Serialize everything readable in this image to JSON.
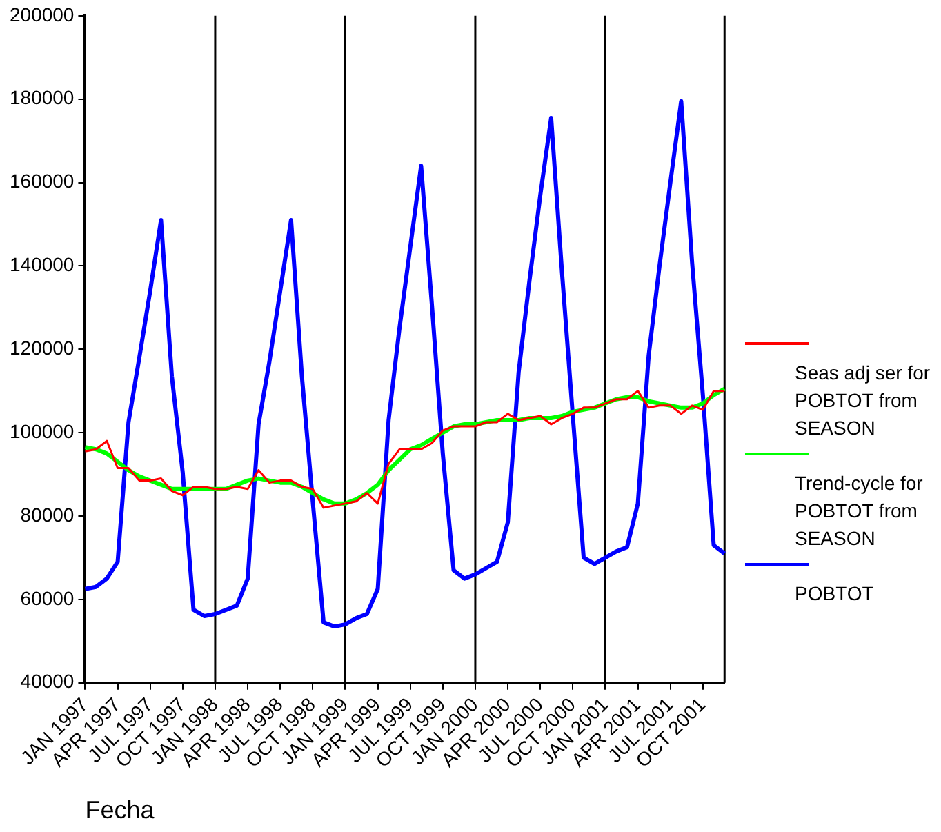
{
  "chart_data": {
    "type": "line",
    "xlabel": "Fecha",
    "categories": [
      "JAN 1997",
      null,
      null,
      "APR 1997",
      null,
      null,
      "JUL 1997",
      null,
      null,
      "OCT 1997",
      null,
      null,
      "JAN 1998",
      null,
      null,
      "APR 1998",
      null,
      null,
      "JUL 1998",
      null,
      null,
      "OCT 1998",
      null,
      null,
      "JAN 1999",
      null,
      null,
      "APR 1999",
      null,
      null,
      "JUL 1999",
      null,
      null,
      "OCT 1999",
      null,
      null,
      "JAN 2000",
      null,
      null,
      "APR 2000",
      null,
      null,
      "JUL 2000",
      null,
      null,
      "OCT 2000",
      null,
      null,
      "JAN 2001",
      null,
      null,
      "APR 2001",
      null,
      null,
      "JUL 2001",
      null,
      null,
      "OCT 2001",
      null,
      null
    ],
    "series": [
      {
        "name": "Seas adj ser for POBTOT from SEASON",
        "color": "#ff0000",
        "values": [
          95500,
          96000,
          98000,
          91500,
          91500,
          88500,
          88500,
          89000,
          86000,
          85000,
          87000,
          87000,
          86500,
          86500,
          87000,
          86500,
          91000,
          88000,
          88500,
          88500,
          87000,
          86500,
          82000,
          82500,
          83000,
          83500,
          85500,
          83000,
          92500,
          96000,
          96000,
          96000,
          97500,
          100500,
          101500,
          101500,
          101500,
          102500,
          102500,
          104500,
          103000,
          103500,
          104000,
          102000,
          103500,
          104500,
          106000,
          106000,
          107000,
          108000,
          108000,
          110000,
          106000,
          106500,
          106500,
          104500,
          106500,
          105500,
          110000,
          110000
        ]
      },
      {
        "name": "Trend-cycle for POBTOT from SEASON",
        "color": "#00ff00",
        "values": [
          96500,
          96000,
          95000,
          93000,
          91000,
          89500,
          88500,
          87500,
          86500,
          86500,
          86500,
          86500,
          86500,
          86500,
          87500,
          88500,
          89000,
          88500,
          88000,
          88000,
          87000,
          85500,
          84000,
          83000,
          83000,
          84000,
          85500,
          87500,
          91000,
          93500,
          96000,
          97000,
          98500,
          100000,
          101500,
          102000,
          102000,
          102500,
          103000,
          103000,
          103000,
          103500,
          103500,
          103500,
          104000,
          105000,
          105500,
          106000,
          107000,
          108000,
          108500,
          108500,
          107500,
          107000,
          106500,
          106000,
          106000,
          107000,
          109000,
          110500
        ]
      },
      {
        "name": "POBTOT",
        "color": "#0000ff",
        "values": [
          62500,
          63000,
          65000,
          69000,
          102500,
          118000,
          134000,
          151000,
          113500,
          90500,
          57500,
          56000,
          56500,
          57500,
          58500,
          65000,
          102000,
          117000,
          134000,
          151000,
          113500,
          83500,
          54500,
          53500,
          54000,
          55500,
          56500,
          62500,
          103000,
          125000,
          144500,
          164000,
          130500,
          95000,
          67000,
          65000,
          66000,
          67500,
          69000,
          78500,
          114500,
          136500,
          157000,
          175500,
          138500,
          104000,
          70000,
          68500,
          70000,
          71500,
          72500,
          83000,
          118500,
          140000,
          160000,
          179500,
          141000,
          109000,
          73000,
          71000
        ]
      }
    ],
    "ylim": [
      40000,
      200000
    ],
    "yticks": [
      40000,
      60000,
      80000,
      100000,
      120000,
      140000,
      160000,
      180000,
      200000
    ],
    "grid": false,
    "legend": "right",
    "marker": "none",
    "line_style": "solid",
    "ref_lines": [
      {
        "axis": "x",
        "value": "JAN 1998",
        "color": "#000000"
      },
      {
        "axis": "x",
        "value": "JAN 1999",
        "color": "#000000"
      },
      {
        "axis": "x",
        "value": "JAN 2000",
        "color": "#000000"
      },
      {
        "axis": "x",
        "value": "JAN 2001",
        "color": "#000000"
      }
    ]
  }
}
